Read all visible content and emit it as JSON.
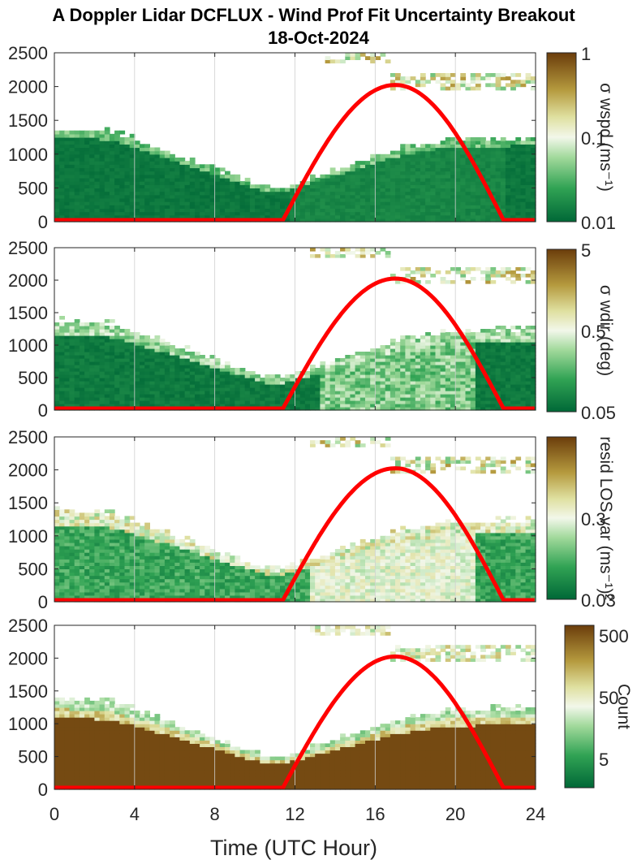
{
  "figure": {
    "title_line1": "A Doppler Lidar DCFLUX - Wind Prof Fit Uncertainty Breakout",
    "title_line2": "18-Oct-2024",
    "xlabel": "Time (UTC Hour)"
  },
  "chart_data": [
    {
      "type": "heatmap",
      "title": "",
      "xlabel": "",
      "ylabel": "",
      "xlim": [
        0,
        24
      ],
      "ylim": [
        0,
        2500
      ],
      "xticks": [
        0,
        4,
        8,
        12,
        16,
        20,
        24
      ],
      "yticks": [
        0,
        500,
        1000,
        1500,
        2000,
        2500
      ],
      "grid": "vertical",
      "colorbar": {
        "label": "σ wspd (ms⁻¹)",
        "scale": "log",
        "range": [
          0.01,
          1
        ],
        "tick_labels": [
          "1",
          "0.1",
          "0.01"
        ]
      },
      "overlay_series": {
        "name": "solar elevation",
        "color": "#ff0000",
        "rise_hour": 11.4,
        "peak_hour": 17.0,
        "set_hour": 22.4,
        "peak_value": 2000
      }
    },
    {
      "type": "heatmap",
      "xlim": [
        0,
        24
      ],
      "ylim": [
        0,
        2500
      ],
      "xticks": [
        0,
        4,
        8,
        12,
        16,
        20,
        24
      ],
      "yticks": [
        0,
        500,
        1000,
        1500,
        2000,
        2500
      ],
      "grid": "vertical",
      "colorbar": {
        "label": "σ wdir (deg)",
        "scale": "log",
        "range": [
          0.05,
          5
        ],
        "tick_labels": [
          "5",
          "0.5",
          "0.05"
        ]
      },
      "overlay_series": {
        "name": "solar elevation",
        "color": "#ff0000",
        "rise_hour": 11.4,
        "peak_hour": 17.0,
        "set_hour": 22.4,
        "peak_value": 2000
      }
    },
    {
      "type": "heatmap",
      "xlim": [
        0,
        24
      ],
      "ylim": [
        0,
        2500
      ],
      "xticks": [
        0,
        4,
        8,
        12,
        16,
        20,
        24
      ],
      "yticks": [
        0,
        500,
        1000,
        1500,
        2000,
        2500
      ],
      "grid": "vertical",
      "colorbar": {
        "label": "resid LOS var (ms⁻¹)²",
        "scale": "log",
        "range": [
          0.03,
          3
        ],
        "tick_labels": [
          "0.3",
          "0.03"
        ]
      },
      "overlay_series": {
        "name": "solar elevation",
        "color": "#ff0000",
        "rise_hour": 11.4,
        "peak_hour": 17.0,
        "set_hour": 22.4,
        "peak_value": 2000
      }
    },
    {
      "type": "heatmap",
      "xlim": [
        0,
        24
      ],
      "ylim": [
        0,
        2500
      ],
      "xticks": [
        0,
        4,
        8,
        12,
        16,
        20,
        24
      ],
      "yticks": [
        0,
        500,
        1000,
        1500,
        2000,
        2500
      ],
      "grid": "vertical",
      "colorbar": {
        "label": "Count",
        "scale": "log",
        "range": [
          1,
          500
        ],
        "tick_labels": [
          "500",
          "50",
          "5"
        ]
      },
      "overlay_series": {
        "name": "solar elevation",
        "color": "#ff0000",
        "rise_hour": 11.4,
        "peak_hour": 17.0,
        "set_hour": 22.4,
        "peak_value": 2000
      }
    }
  ],
  "colors": {
    "dark_green": "#006837",
    "light": "#f7f7f7",
    "brown": "#6b3d0b",
    "curve": "#ff0000"
  }
}
